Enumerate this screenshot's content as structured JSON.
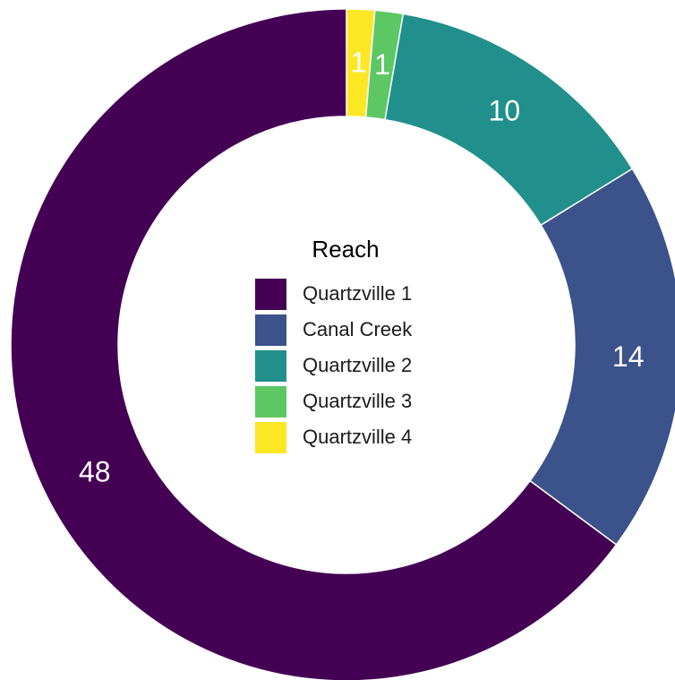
{
  "chart_data": {
    "type": "donut",
    "legend_title": "Reach",
    "categories": [
      "Quartzville 1",
      "Canal Creek",
      "Quartzville 2",
      "Quartzville 3",
      "Quartzville 4"
    ],
    "values": [
      48,
      14,
      10,
      1,
      1
    ],
    "colors": [
      "#440154",
      "#3B528B",
      "#21908C",
      "#5DC863",
      "#FDE725"
    ]
  }
}
